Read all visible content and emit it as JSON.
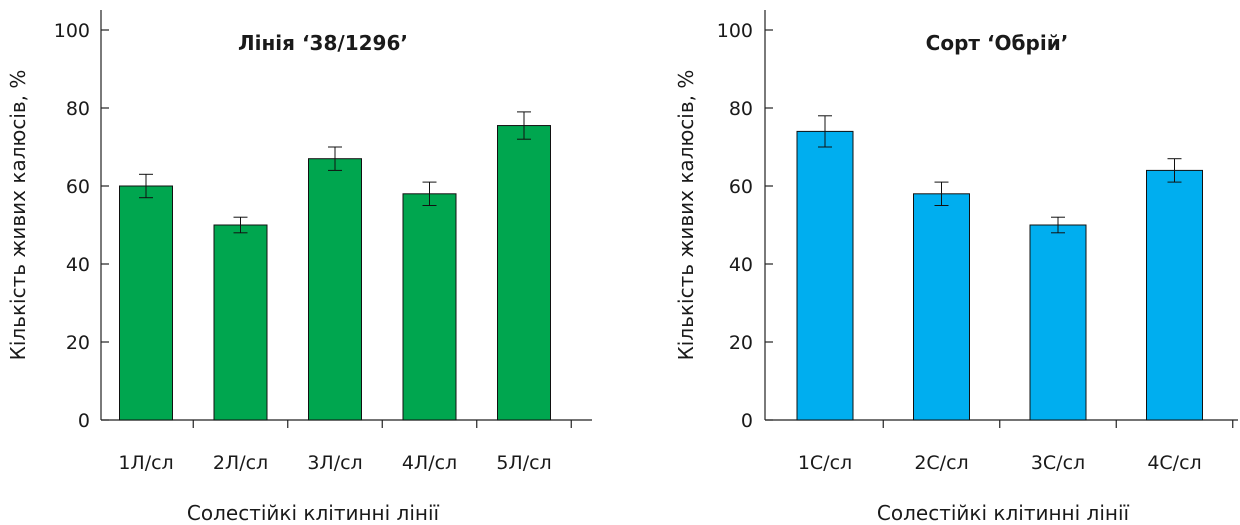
{
  "chart_data": [
    {
      "type": "bar",
      "title": "Лінія ‘38/1296’",
      "xlabel": "Солестійкі клітинні лінії",
      "ylabel": "Кількість живих калюсів, %",
      "categories": [
        "1Л/сл",
        "2Л/сл",
        "3Л/сл",
        "4Л/сл",
        "5Л/сл"
      ],
      "series": [
        {
          "values": [
            60,
            50,
            67,
            58,
            75.5
          ],
          "errors": [
            3,
            2,
            3,
            3,
            3.5
          ],
          "color": "#00a64f"
        }
      ],
      "ylim": [
        0,
        100
      ],
      "yticks": [
        0,
        20,
        40,
        60,
        80,
        100
      ],
      "grid": false,
      "legend": "none"
    },
    {
      "type": "bar",
      "title": "Сорт ‘Обрій’",
      "xlabel": "Солестійкі клітинні лінії",
      "ylabel": "Кількість живих калюсів, %",
      "categories": [
        "1С/сл",
        "2С/сл",
        "3С/сл",
        "4С/сл"
      ],
      "series": [
        {
          "values": [
            74,
            58,
            50,
            64
          ],
          "errors": [
            4,
            3,
            2,
            3
          ],
          "color": "#00aeef"
        }
      ],
      "ylim": [
        0,
        100
      ],
      "yticks": [
        0,
        20,
        40,
        60,
        80,
        100
      ],
      "grid": false,
      "legend": "none"
    }
  ]
}
